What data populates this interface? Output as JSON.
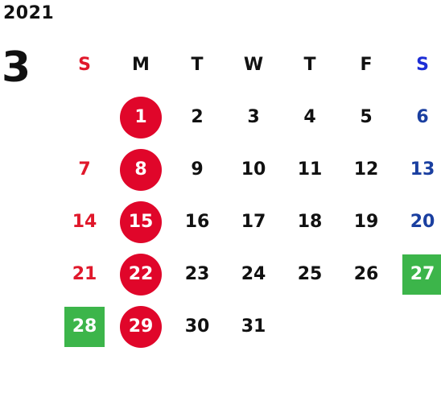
{
  "calendar": {
    "year": "2021",
    "month": "3",
    "weekdays": [
      "S",
      "M",
      "T",
      "W",
      "T",
      "F",
      "S"
    ],
    "weeks": [
      [
        "",
        "1",
        "2",
        "3",
        "4",
        "5",
        "6"
      ],
      [
        "7",
        "8",
        "9",
        "10",
        "11",
        "12",
        "13"
      ],
      [
        "14",
        "15",
        "16",
        "17",
        "18",
        "19",
        "20"
      ],
      [
        "21",
        "22",
        "23",
        "24",
        "25",
        "26",
        "27"
      ],
      [
        "28",
        "29",
        "30",
        "31",
        "",
        "",
        ""
      ]
    ],
    "colors": {
      "sunday_text": "#e0182b",
      "saturday_text": "#1a3fa0",
      "circle_highlight": "#e0062a",
      "square_highlight": "#3cb54a"
    }
  }
}
